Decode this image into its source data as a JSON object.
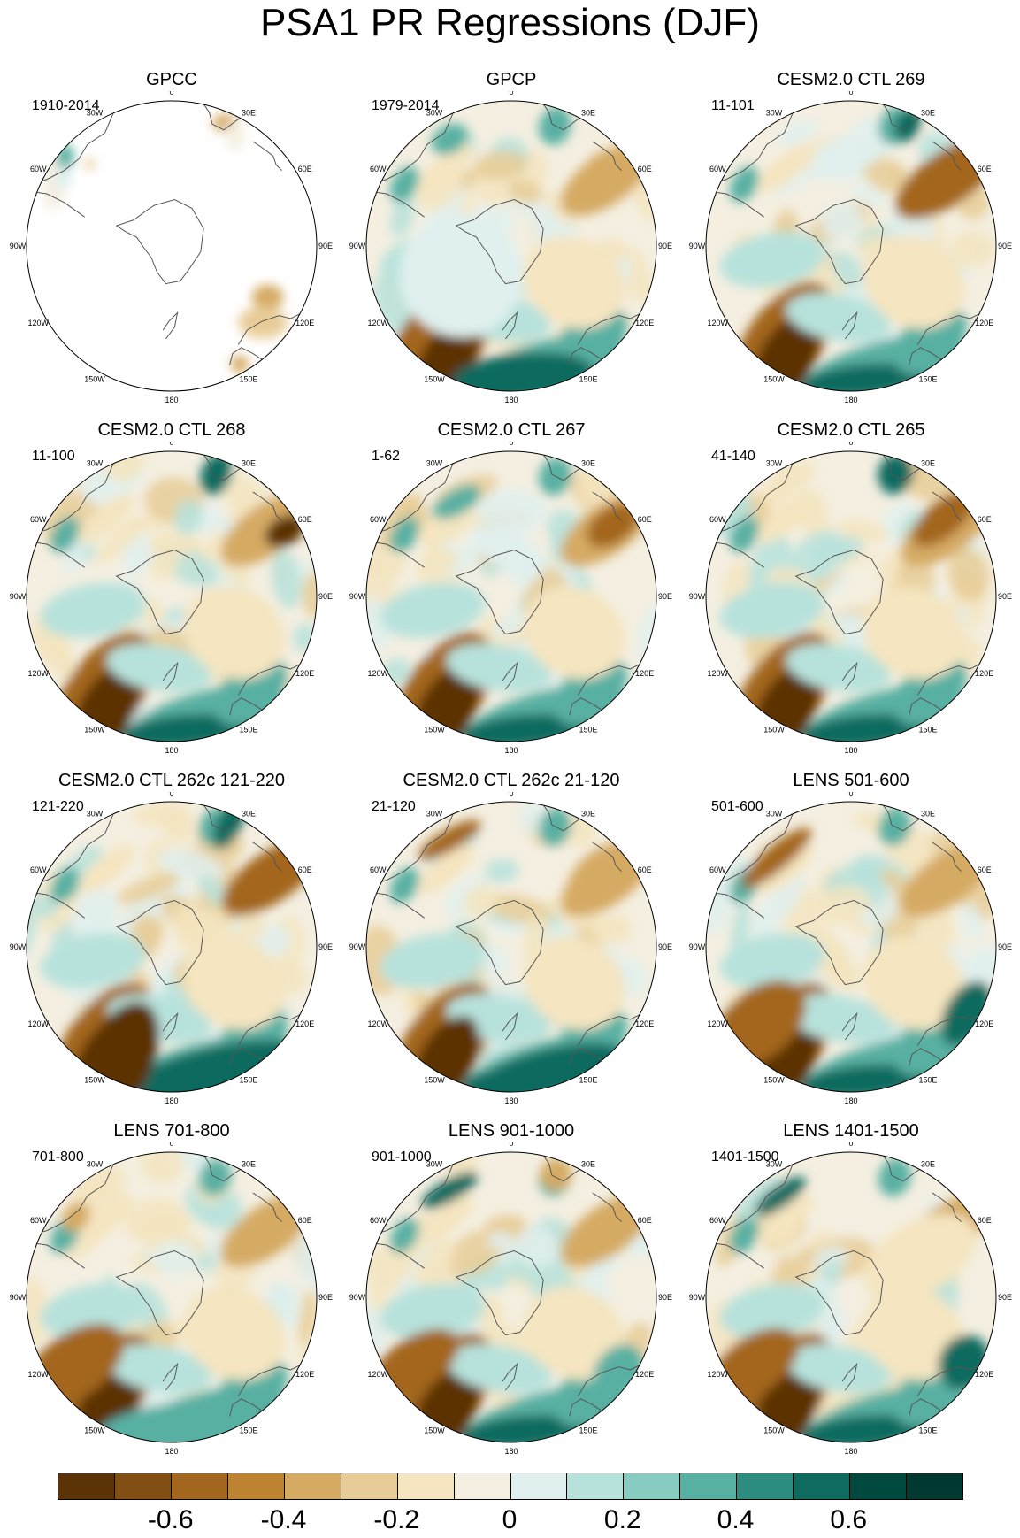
{
  "figure": {
    "title": "PSA1 PR Regressions (DJF)",
    "longitude_labels": [
      "0",
      "30E",
      "60E",
      "90E",
      "120E",
      "150E",
      "180",
      "150W",
      "120W",
      "90W",
      "60W",
      "30W"
    ],
    "panels": [
      {
        "title": "GPCC",
        "years": "1910-2014",
        "coverage": "land-only",
        "dominant_pattern": "mostly blank ocean; tan over south South America and Australia"
      },
      {
        "title": "GPCP",
        "years": "1979-2014"
      },
      {
        "title": "CESM2.0 CTL 269",
        "years": "11-101"
      },
      {
        "title": "CESM2.0 CTL 268",
        "years": "11-100"
      },
      {
        "title": "CESM2.0 CTL 267",
        "years": "1-62"
      },
      {
        "title": "CESM2.0 CTL 265",
        "years": "41-140"
      },
      {
        "title": "CESM2.0 CTL 262c 121-220",
        "years": "121-220"
      },
      {
        "title": "CESM2.0 CTL 262c 21-120",
        "years": "21-120"
      },
      {
        "title": "LENS 501-600",
        "years": "501-600"
      },
      {
        "title": "LENS 701-800",
        "years": "701-800"
      },
      {
        "title": "LENS 901-1000",
        "years": "901-1000"
      },
      {
        "title": "LENS 1401-1500",
        "years": "1401-1500"
      }
    ]
  },
  "colorbar": {
    "labels": [
      "-0.6",
      "-0.4",
      "-0.2",
      "0",
      "0.2",
      "0.4",
      "0.6"
    ],
    "label_values": [
      -0.6,
      -0.4,
      -0.2,
      0,
      0.2,
      0.4,
      0.6
    ],
    "range": [
      -0.8,
      0.8
    ],
    "colors": [
      "#5b3306",
      "#814e14",
      "#a3661f",
      "#be8330",
      "#d5aa63",
      "#e8cc97",
      "#f5e5c0",
      "#f4efe1",
      "#e0f0ee",
      "#b7e2dc",
      "#88cbc0",
      "#58b0a3",
      "#2c8c80",
      "#0f6a5f",
      "#00493f",
      "#013830"
    ]
  }
}
